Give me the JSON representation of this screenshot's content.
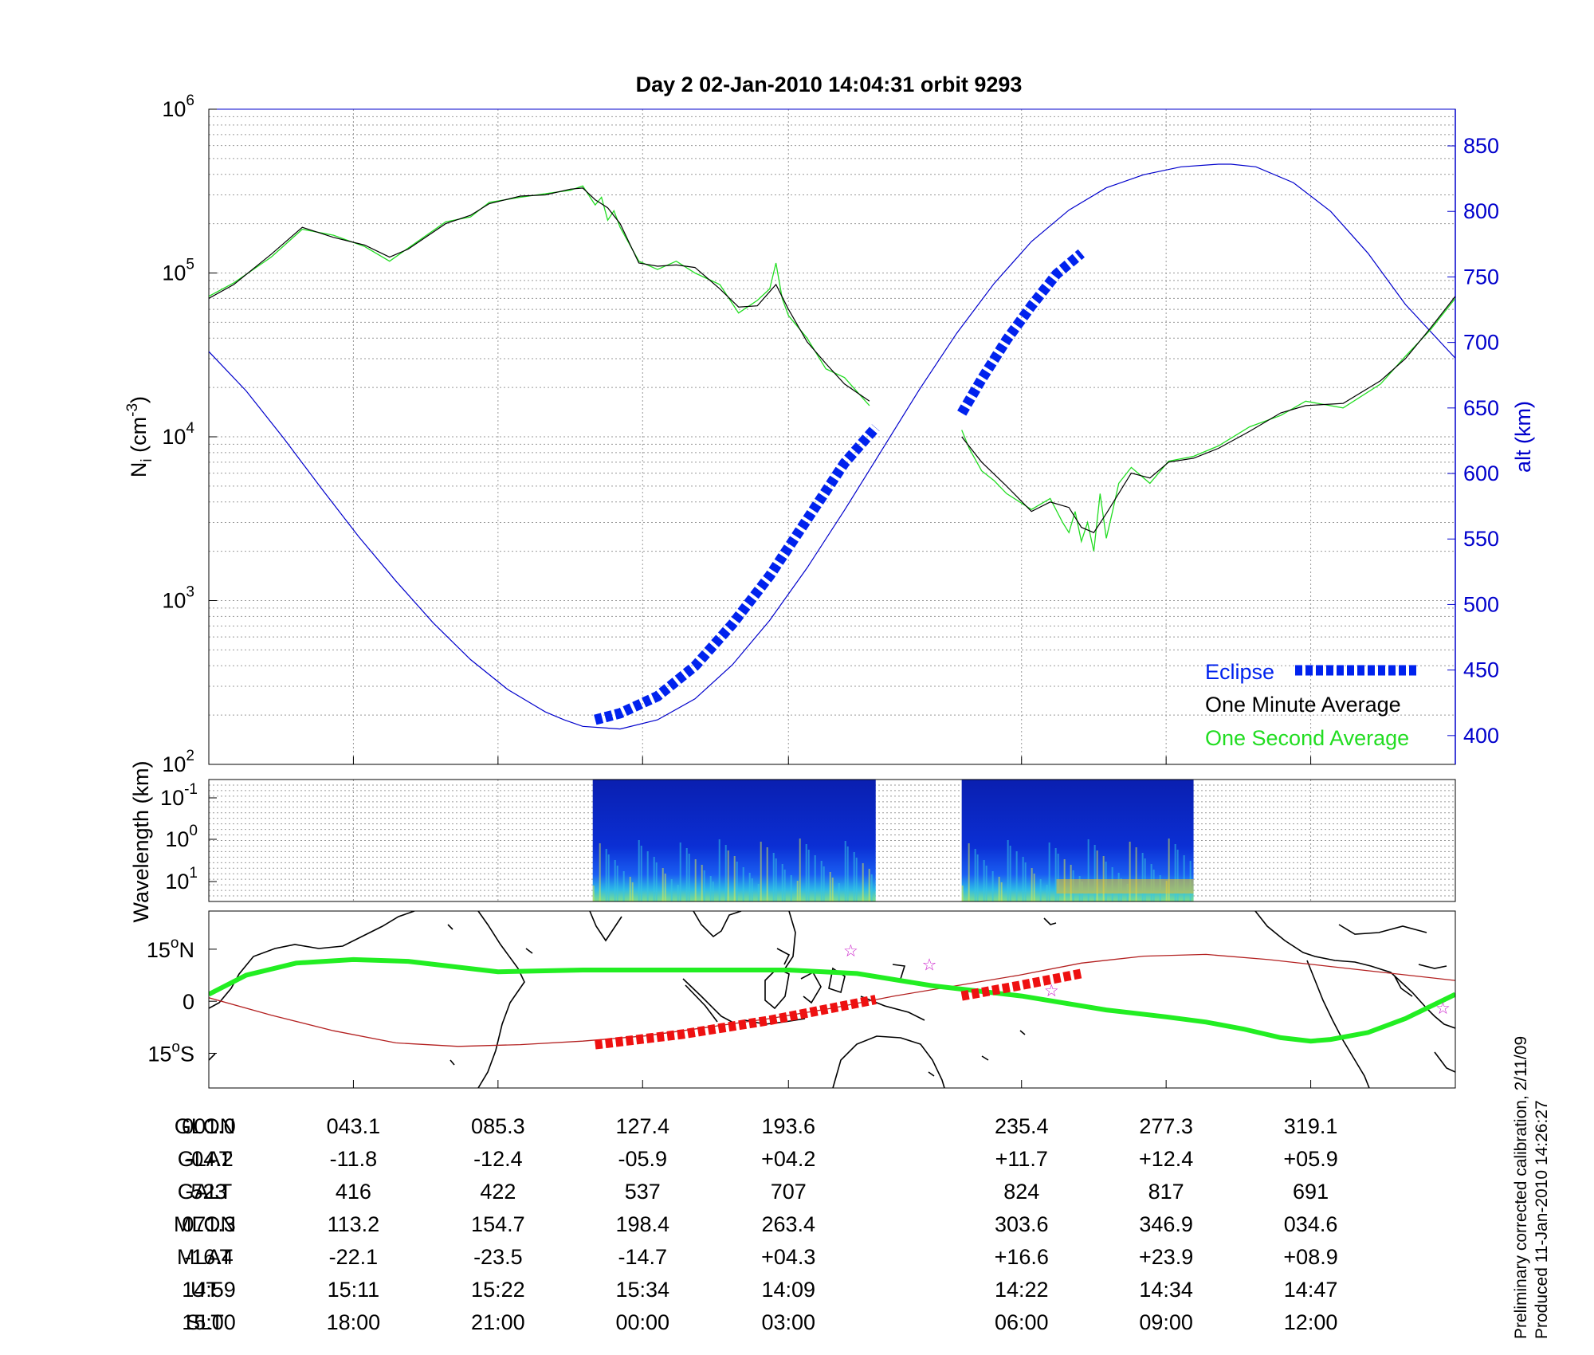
{
  "title": "Day 2  02-Jan-2010 14:04:31   orbit 9293",
  "colors": {
    "alt": "#0000cc",
    "eclipse": "#0022ee",
    "one_minute": "#000000",
    "one_second": "#22dd22",
    "track": "#22ee22",
    "dip_equator": "#b32020",
    "eclipse_track": "#ee1111",
    "star": "#cc22cc"
  },
  "chart_data": [
    {
      "type": "line",
      "panel": "density",
      "ylabel_left": "N",
      "ylabel_left_sub": "i",
      "ylabel_left_unit": " (cm",
      "ylabel_left_exp": "-3",
      "ylabel_left_close": ")",
      "ylabel_right": "alt (km)",
      "yscale_left": "log",
      "ylim_left": [
        100,
        1000000
      ],
      "yticks_left": [
        {
          "base": "10",
          "exp": "2",
          "v": 100
        },
        {
          "base": "10",
          "exp": "3",
          "v": 1000
        },
        {
          "base": "10",
          "exp": "4",
          "v": 10000
        },
        {
          "base": "10",
          "exp": "5",
          "v": 100000
        },
        {
          "base": "10",
          "exp": "6",
          "v": 1000000
        }
      ],
      "ylim_right": [
        378,
        878
      ],
      "yticks_right": [
        "400",
        "450",
        "500",
        "550",
        "600",
        "650",
        "700",
        "750",
        "800",
        "850"
      ],
      "grid": true,
      "legend": {
        "position": "bottom-right",
        "entries": [
          {
            "label": "Eclipse"
          },
          {
            "label": "One Minute Average"
          },
          {
            "label": "One Second Average"
          }
        ]
      },
      "x_positions": [
        0.0,
        0.116,
        0.232,
        0.348,
        0.465,
        0.652,
        0.768,
        0.884,
        1.0
      ],
      "altitude": {
        "x": [
          0.0,
          0.03,
          0.06,
          0.09,
          0.12,
          0.15,
          0.18,
          0.21,
          0.24,
          0.27,
          0.285,
          0.3,
          0.33,
          0.36,
          0.39,
          0.42,
          0.45,
          0.48,
          0.51,
          0.54,
          0.57,
          0.6,
          0.63,
          0.66,
          0.69,
          0.72,
          0.75,
          0.78,
          0.81,
          0.82,
          0.84,
          0.87,
          0.9,
          0.93,
          0.96,
          1.0
        ],
        "y": [
          693,
          663,
          627,
          589,
          552,
          518,
          486,
          458,
          435,
          418,
          412,
          407,
          405,
          412,
          428,
          454,
          488,
          528,
          572,
          618,
          664,
          707,
          745,
          777,
          801,
          818,
          828,
          834,
          836,
          836,
          834,
          822,
          800,
          768,
          729,
          688
        ]
      },
      "one_minute": {
        "segments": [
          {
            "x": [
              0.0,
              0.02,
              0.05,
              0.075,
              0.1,
              0.125,
              0.145,
              0.16,
              0.19,
              0.21,
              0.225,
              0.25,
              0.27,
              0.29,
              0.3,
              0.31,
              0.32,
              0.33,
              0.345,
              0.36,
              0.375,
              0.39,
              0.41,
              0.425,
              0.44,
              0.455,
              0.465,
              0.48,
              0.495,
              0.51,
              0.53
            ],
            "y": [
              70000,
              85000,
              130000,
              190000,
              165000,
              148000,
              125000,
              140000,
              200000,
              225000,
              265000,
              295000,
              300000,
              325000,
              330000,
              280000,
              250000,
              200000,
              115000,
              110000,
              112000,
              108000,
              80000,
              62000,
              63000,
              85000,
              60000,
              38000,
              28000,
              21000,
              16500
            ]
          },
          {
            "x": [
              0.604,
              0.62,
              0.64,
              0.66,
              0.675,
              0.69,
              0.7,
              0.71,
              0.72,
              0.74,
              0.755,
              0.77,
              0.79,
              0.81,
              0.835,
              0.86,
              0.88,
              0.91,
              0.94,
              0.96,
              0.98,
              1.0
            ],
            "y": [
              10000,
              7000,
              5000,
              3500,
              4000,
              3700,
              2800,
              2600,
              3400,
              6000,
              5600,
              7000,
              7400,
              8500,
              10800,
              14000,
              15500,
              16000,
              22000,
              30000,
              46000,
              72000
            ]
          }
        ]
      },
      "one_second": {
        "segments": [
          {
            "x": [
              0.0,
              0.02,
              0.05,
              0.075,
              0.1,
              0.125,
              0.145,
              0.16,
              0.19,
              0.21,
              0.225,
              0.25,
              0.27,
              0.29,
              0.3,
              0.31,
              0.315,
              0.32,
              0.325,
              0.33,
              0.345,
              0.36,
              0.375,
              0.39,
              0.41,
              0.425,
              0.44,
              0.45,
              0.455,
              0.46,
              0.465,
              0.48,
              0.495,
              0.51,
              0.53
            ],
            "y": [
              72000,
              87000,
              125000,
              185000,
              170000,
              145000,
              118000,
              142000,
              205000,
              220000,
              270000,
              290000,
              305000,
              320000,
              340000,
              260000,
              290000,
              210000,
              240000,
              190000,
              118000,
              105000,
              118000,
              100000,
              85000,
              57000,
              68000,
              80000,
              115000,
              70000,
              55000,
              40000,
              26000,
              23000,
              15500
            ]
          },
          {
            "x": [
              0.604,
              0.61,
              0.62,
              0.63,
              0.64,
              0.66,
              0.675,
              0.685,
              0.69,
              0.695,
              0.7,
              0.705,
              0.71,
              0.715,
              0.72,
              0.725,
              0.73,
              0.74,
              0.755,
              0.77,
              0.79,
              0.81,
              0.835,
              0.86,
              0.88,
              0.91,
              0.94,
              0.96,
              0.98,
              1.0
            ],
            "y": [
              11000,
              8500,
              6200,
              5400,
              4500,
              3600,
              4200,
              3000,
              2600,
              3500,
              2300,
              3000,
              2000,
              4500,
              2400,
              3500,
              5200,
              6500,
              5200,
              7100,
              7600,
              8800,
              11500,
              13500,
              16500,
              15000,
              21000,
              31000,
              45000,
              70000
            ]
          }
        ]
      },
      "eclipse": {
        "segments": [
          {
            "x": [
              0.31,
              0.33,
              0.36,
              0.39,
              0.42,
              0.45,
              0.48,
              0.51,
              0.535
            ],
            "y": [
              412,
              417,
              430,
              453,
              485,
              522,
              565,
              608,
              635
            ]
          },
          {
            "x": [
              0.604,
              0.62,
              0.64,
              0.66,
              0.68,
              0.7
            ],
            "y": [
              646,
              672,
              702,
              728,
              752,
              768
            ]
          }
        ]
      }
    },
    {
      "type": "heatmap",
      "panel": "spectrogram",
      "ylabel": "Wavelength (km)",
      "yticks": [
        {
          "base": "10",
          "exp": "-1"
        },
        {
          "base": "10",
          "exp": "0"
        },
        {
          "base": "10",
          "exp": "1"
        }
      ],
      "blocks": [
        [
          0.308,
          0.535
        ],
        [
          0.604,
          0.79
        ]
      ]
    },
    {
      "type": "line",
      "panel": "map",
      "yticks": [
        {
          "deg": "15",
          "suffix": "N",
          "v": 15
        },
        {
          "deg": "0",
          "suffix": "",
          "v": 0
        },
        {
          "deg": "15",
          "suffix": "S",
          "v": -15
        }
      ],
      "ylim": [
        -25,
        26
      ],
      "track": {
        "x": [
          0.0,
          0.03,
          0.07,
          0.116,
          0.16,
          0.232,
          0.3,
          0.348,
          0.4,
          0.465,
          0.52,
          0.58,
          0.652,
          0.72,
          0.768,
          0.8,
          0.83,
          0.86,
          0.884,
          0.9,
          0.93,
          0.96,
          1.0
        ],
        "y": [
          2,
          7.5,
          11,
          12,
          11.5,
          8.5,
          9,
          9,
          9,
          9,
          8,
          4.5,
          1.5,
          -2.5,
          -4.5,
          -6,
          -8,
          -10.5,
          -11.5,
          -11,
          -9,
          -5,
          2
        ]
      },
      "dip_equator": {
        "x": [
          0.0,
          0.05,
          0.1,
          0.15,
          0.2,
          0.25,
          0.3,
          0.35,
          0.4,
          0.45,
          0.5,
          0.55,
          0.6,
          0.65,
          0.7,
          0.75,
          0.8,
          0.85,
          0.9,
          0.95,
          1.0
        ],
        "y": [
          1,
          -4,
          -8.5,
          -12,
          -13,
          -12.5,
          -11.5,
          -10,
          -7.5,
          -5,
          -2,
          1.5,
          4.5,
          7.5,
          11,
          13,
          13.5,
          12,
          10,
          8,
          6
        ]
      },
      "eclipse_track": {
        "segments": [
          {
            "x": [
              0.31,
              0.38,
              0.45,
              0.535
            ],
            "y": [
              -12.5,
              -9.5,
              -5.5,
              0.5
            ]
          },
          {
            "x": [
              0.604,
              0.65,
              0.7
            ],
            "y": [
              1.5,
              4.5,
              8
            ]
          }
        ]
      },
      "stars": {
        "x": [
          0.515,
          0.578,
          0.676,
          0.99
        ],
        "y": [
          14.5,
          10.5,
          3,
          -2
        ]
      }
    }
  ],
  "table": {
    "row_labels": [
      "GLON",
      "GLAT",
      "GALT",
      "MLON",
      "MLAT",
      "UT",
      "SLT"
    ],
    "columns": [
      [
        "001.0",
        "-04.2",
        "523",
        "071.3",
        "-16.4",
        "14:59",
        "15:00"
      ],
      [
        "043.1",
        "-11.8",
        "416",
        "113.2",
        "-22.1",
        "15:11",
        "18:00"
      ],
      [
        "085.3",
        "-12.4",
        "422",
        "154.7",
        "-23.5",
        "15:22",
        "21:00"
      ],
      [
        "127.4",
        "-05.9",
        "537",
        "198.4",
        "-14.7",
        "15:34",
        "00:00"
      ],
      [
        "193.6",
        "+04.2",
        "707",
        "263.4",
        "+04.3",
        "14:09",
        "03:00"
      ],
      [
        "235.4",
        "+11.7",
        "824",
        "303.6",
        "+16.6",
        "14:22",
        "06:00"
      ],
      [
        "277.3",
        "+12.4",
        "817",
        "346.9",
        "+23.9",
        "14:34",
        "09:00"
      ],
      [
        "319.1",
        "+05.9",
        "691",
        "034.6",
        "+08.9",
        "14:47",
        "12:00"
      ]
    ]
  },
  "footer": {
    "line1": "Preliminary corrected calibration, 2/11/09",
    "line2": "Produced 11-Jan-2010 14:26:27"
  }
}
